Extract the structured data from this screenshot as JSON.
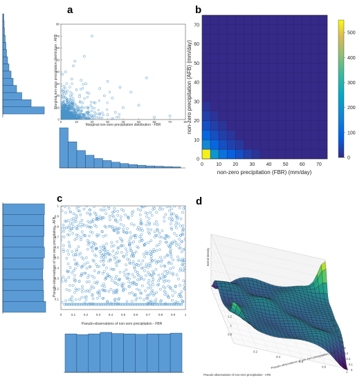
{
  "panels": [
    {
      "letter": "a"
    },
    {
      "letter": "b"
    },
    {
      "letter": "c"
    },
    {
      "letter": "d"
    }
  ],
  "chart_data": [
    {
      "id": "a",
      "type": "scatter",
      "xlabel": "Marginal non-zero precipitation distribution - FBR",
      "ylabel": "Marginal non-zero precipitation distribution - AFB",
      "xlim": [
        0,
        80
      ],
      "ylim": [
        0,
        80
      ],
      "xticks": [
        0,
        10,
        20,
        30,
        40,
        50,
        60,
        70,
        80
      ],
      "yticks": [
        0,
        10,
        20,
        30,
        40,
        50,
        60,
        70,
        80
      ],
      "marker_color": "#4a93c8",
      "points": [
        [
          20,
          70
        ],
        [
          15,
          53
        ],
        [
          9,
          49
        ],
        [
          8,
          45
        ],
        [
          55,
          35
        ],
        [
          30,
          32
        ],
        [
          13,
          33
        ],
        [
          7,
          34
        ],
        [
          16,
          30
        ],
        [
          38,
          27
        ],
        [
          25,
          26
        ],
        [
          45,
          23
        ],
        [
          10,
          25
        ],
        [
          18,
          22
        ],
        [
          28,
          20
        ],
        [
          12,
          19
        ],
        [
          6,
          20
        ],
        [
          33,
          18
        ],
        [
          4,
          24
        ],
        [
          2,
          28
        ],
        [
          3,
          40
        ],
        [
          1,
          38
        ],
        [
          60,
          2
        ],
        [
          70,
          3
        ],
        [
          40,
          10
        ],
        [
          35,
          6
        ],
        [
          50,
          12
        ],
        [
          22,
          14
        ],
        [
          20,
          10
        ],
        [
          14,
          14
        ],
        [
          9,
          13
        ],
        [
          5,
          15
        ],
        [
          3,
          11
        ],
        [
          11,
          8
        ],
        [
          7,
          9
        ],
        [
          4,
          7
        ],
        [
          2,
          6
        ],
        [
          17,
          6
        ],
        [
          25,
          5
        ],
        [
          30,
          4
        ],
        [
          1,
          3
        ],
        [
          3,
          2
        ],
        [
          6,
          2
        ],
        [
          8,
          3
        ],
        [
          12,
          3
        ],
        [
          15,
          2
        ],
        [
          2,
          1
        ],
        [
          5,
          1
        ],
        [
          9,
          1
        ],
        [
          1,
          1
        ]
      ],
      "marginal_x": {
        "bins": [
          0,
          2.5,
          5,
          7.5,
          10,
          12.5,
          15,
          17.5,
          20,
          22.5,
          25,
          27.5,
          30,
          32.5,
          35
        ],
        "counts": [
          120,
          78,
          52,
          38,
          28,
          22,
          17,
          13,
          10,
          8,
          6,
          5,
          4,
          3
        ]
      },
      "marginal_y": {
        "bins": [
          0,
          2.5,
          5,
          7.5,
          10,
          12.5,
          15,
          17.5,
          20,
          22.5,
          25,
          27.5,
          30,
          32.5,
          35
        ],
        "counts": [
          120,
          82,
          55,
          40,
          30,
          24,
          18,
          14,
          11,
          9,
          7,
          5,
          4,
          3
        ]
      }
    },
    {
      "id": "b",
      "type": "heatmap",
      "xlabel": "non-zero precipitation (FBR) (mm/day)",
      "ylabel": "non-zero precipitation (AFB) (mm/day)",
      "xlim": [
        0,
        75
      ],
      "ylim": [
        0,
        75
      ],
      "xticks": [
        0,
        10,
        20,
        30,
        40,
        50,
        60,
        70
      ],
      "yticks": [
        0,
        10,
        20,
        30,
        40,
        50,
        60,
        70
      ],
      "bin_width": 5,
      "colorbar": {
        "min": 0,
        "max": 550,
        "ticks": [
          0,
          100,
          200,
          300,
          400,
          500
        ]
      },
      "cells": [
        {
          "x": 0,
          "y": 0,
          "value": 540
        },
        {
          "x": 5,
          "y": 0,
          "value": 210
        },
        {
          "x": 10,
          "y": 0,
          "value": 120
        },
        {
          "x": 15,
          "y": 0,
          "value": 80
        },
        {
          "x": 20,
          "y": 0,
          "value": 55
        },
        {
          "x": 25,
          "y": 0,
          "value": 30
        },
        {
          "x": 30,
          "y": 0,
          "value": 15
        },
        {
          "x": 0,
          "y": 5,
          "value": 170
        },
        {
          "x": 5,
          "y": 5,
          "value": 95
        },
        {
          "x": 10,
          "y": 5,
          "value": 55
        },
        {
          "x": 15,
          "y": 5,
          "value": 35
        },
        {
          "x": 20,
          "y": 5,
          "value": 20
        },
        {
          "x": 0,
          "y": 10,
          "value": 95
        },
        {
          "x": 5,
          "y": 10,
          "value": 55
        },
        {
          "x": 10,
          "y": 10,
          "value": 30
        },
        {
          "x": 15,
          "y": 10,
          "value": 18
        },
        {
          "x": 0,
          "y": 15,
          "value": 55
        },
        {
          "x": 5,
          "y": 15,
          "value": 30
        },
        {
          "x": 10,
          "y": 15,
          "value": 16
        },
        {
          "x": 0,
          "y": 20,
          "value": 30
        },
        {
          "x": 5,
          "y": 20,
          "value": 15
        },
        {
          "x": 0,
          "y": 25,
          "value": 15
        }
      ]
    },
    {
      "id": "c",
      "type": "scatter",
      "xlabel": "Pseudo-observations of non-zero precipitation - FBR",
      "ylabel": "Pseudo-observations of non-zero precipitation - AFB",
      "xlim": [
        0,
        1
      ],
      "ylim": [
        0,
        1
      ],
      "xticks": [
        0,
        0.1,
        0.2,
        0.3,
        0.4,
        0.5,
        0.6,
        0.7,
        0.8,
        0.9,
        1
      ],
      "yticks": [
        0.1,
        0.2,
        0.3,
        0.4,
        0.5,
        0.6,
        0.7,
        0.8,
        0.9,
        1
      ],
      "marker_color": "#4a93c8",
      "n_points": 800,
      "floor_y": 0.05,
      "marginal_x": {
        "bins": [
          0,
          0.1,
          0.2,
          0.3,
          0.4,
          0.5,
          0.6,
          0.7,
          0.8,
          0.9,
          1
        ],
        "counts": [
          100,
          98,
          100,
          104,
          101,
          100,
          99,
          100,
          100,
          102
        ]
      },
      "marginal_y": {
        "bins": [
          0,
          0.1,
          0.2,
          0.3,
          0.4,
          0.5,
          0.6,
          0.7,
          0.8,
          0.9,
          1
        ],
        "counts": [
          104,
          99,
          98,
          97,
          98,
          101,
          99,
          100,
          100,
          101
        ]
      }
    },
    {
      "id": "d",
      "type": "surface",
      "xlabel": "Pseudo-observations of non-zero precipitation - AFB",
      "ylabel": "Pseudo-observations of non-zero precipitation - FBR",
      "zlabel": "Kernel density",
      "zticks": [
        0.8,
        1,
        1.2,
        1.4,
        1.6,
        1.8
      ],
      "xticks": [
        0,
        0.1,
        0.2,
        0.3,
        0.4,
        0.5,
        0.6,
        0.7,
        0.8,
        0.9,
        1
      ],
      "yticks": [
        0.2,
        0.4,
        0.6,
        0.8,
        1
      ],
      "colormap": "viridis"
    }
  ]
}
